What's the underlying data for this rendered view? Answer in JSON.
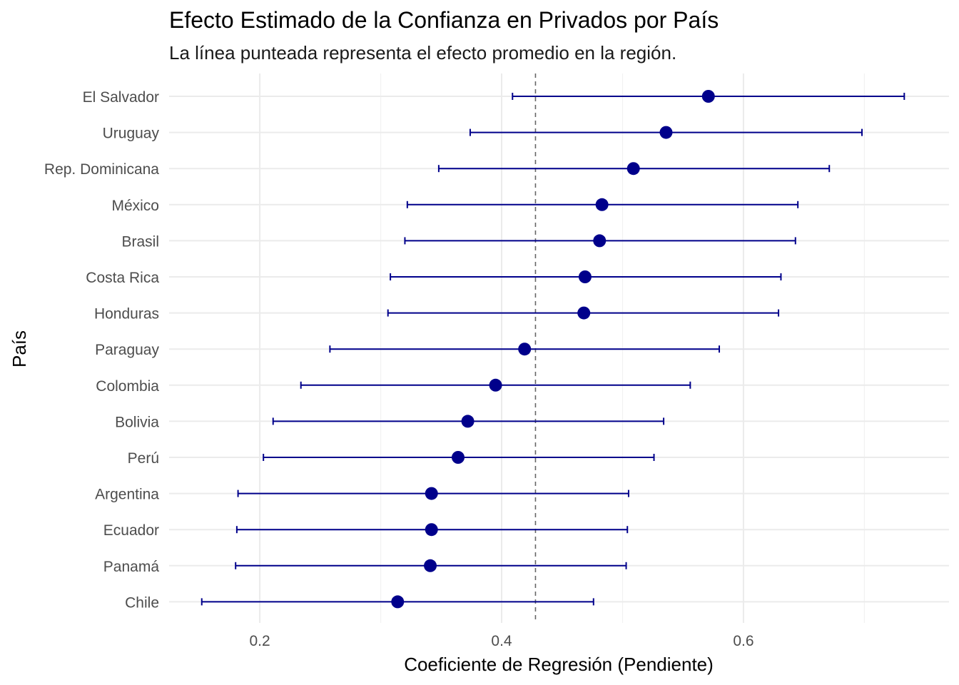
{
  "chart_data": {
    "type": "scatter",
    "title": "Efecto Estimado de la Confianza en Privados por País",
    "subtitle": "La línea punteada representa el efecto promedio en la región.",
    "xlabel": "Coeficiente de Regresión (Pendiente)",
    "ylabel": "País",
    "xlim": [
      0.125,
      0.77
    ],
    "xticks": [
      "0.2",
      "0.4",
      "0.6"
    ],
    "grid": true,
    "reference_line": 0.428,
    "point_color": "#00008b",
    "errorbar_color": "#00008b",
    "categories": [
      "Chile",
      "Panamá",
      "Ecuador",
      "Argentina",
      "Perú",
      "Bolivia",
      "Colombia",
      "Paraguay",
      "Honduras",
      "Costa Rica",
      "Brasil",
      "México",
      "Rep. Dominicana",
      "Uruguay",
      "El Salvador"
    ],
    "estimates": [
      0.314,
      0.341,
      0.342,
      0.342,
      0.364,
      0.372,
      0.395,
      0.419,
      0.468,
      0.469,
      0.481,
      0.483,
      0.509,
      0.536,
      0.571
    ],
    "lower": [
      0.152,
      0.18,
      0.181,
      0.182,
      0.203,
      0.211,
      0.234,
      0.258,
      0.306,
      0.308,
      0.32,
      0.322,
      0.348,
      0.374,
      0.409
    ],
    "upper": [
      0.476,
      0.503,
      0.504,
      0.505,
      0.526,
      0.534,
      0.556,
      0.58,
      0.629,
      0.631,
      0.643,
      0.645,
      0.671,
      0.698,
      0.733
    ]
  }
}
